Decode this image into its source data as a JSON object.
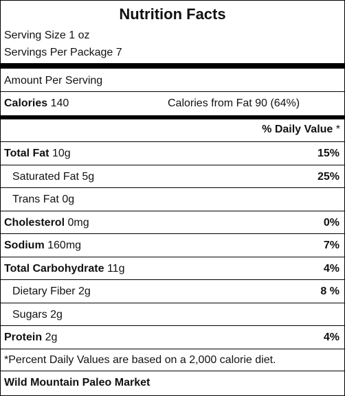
{
  "title": "Nutrition Facts",
  "serving": {
    "size": "Serving Size 1 oz",
    "per_package": "Servings Per Package 7"
  },
  "amount_per_serving": "Amount Per Serving",
  "calories": {
    "label": "Calories",
    "value": "140",
    "from_fat": "Calories from Fat 90 (64%)"
  },
  "daily_value_header": {
    "label": "% Daily Value",
    "star": "*"
  },
  "nutrients": [
    {
      "name": "Total Fat",
      "amount": "10g",
      "percent": "15%"
    },
    {
      "name": "Saturated Fat",
      "amount": "5g",
      "percent": "25%"
    },
    {
      "name": "Trans Fat",
      "amount": "0g",
      "percent": ""
    },
    {
      "name": "Cholesterol",
      "amount": "0mg",
      "percent": "0%"
    },
    {
      "name": "Sodium",
      "amount": "160mg",
      "percent": "7%"
    },
    {
      "name": "Total Carbohydrate",
      "amount": "11g",
      "percent": "4%"
    },
    {
      "name": "Dietary Fiber",
      "amount": "2g",
      "percent": "8 %"
    },
    {
      "name": "Sugars",
      "amount": "2g",
      "percent": ""
    },
    {
      "name": "Protein",
      "amount": "2g",
      "percent": "4%"
    }
  ],
  "footnote": "*Percent Daily Values are based on a 2,000 calorie diet.",
  "brand": "Wild Mountain Paleo Market"
}
